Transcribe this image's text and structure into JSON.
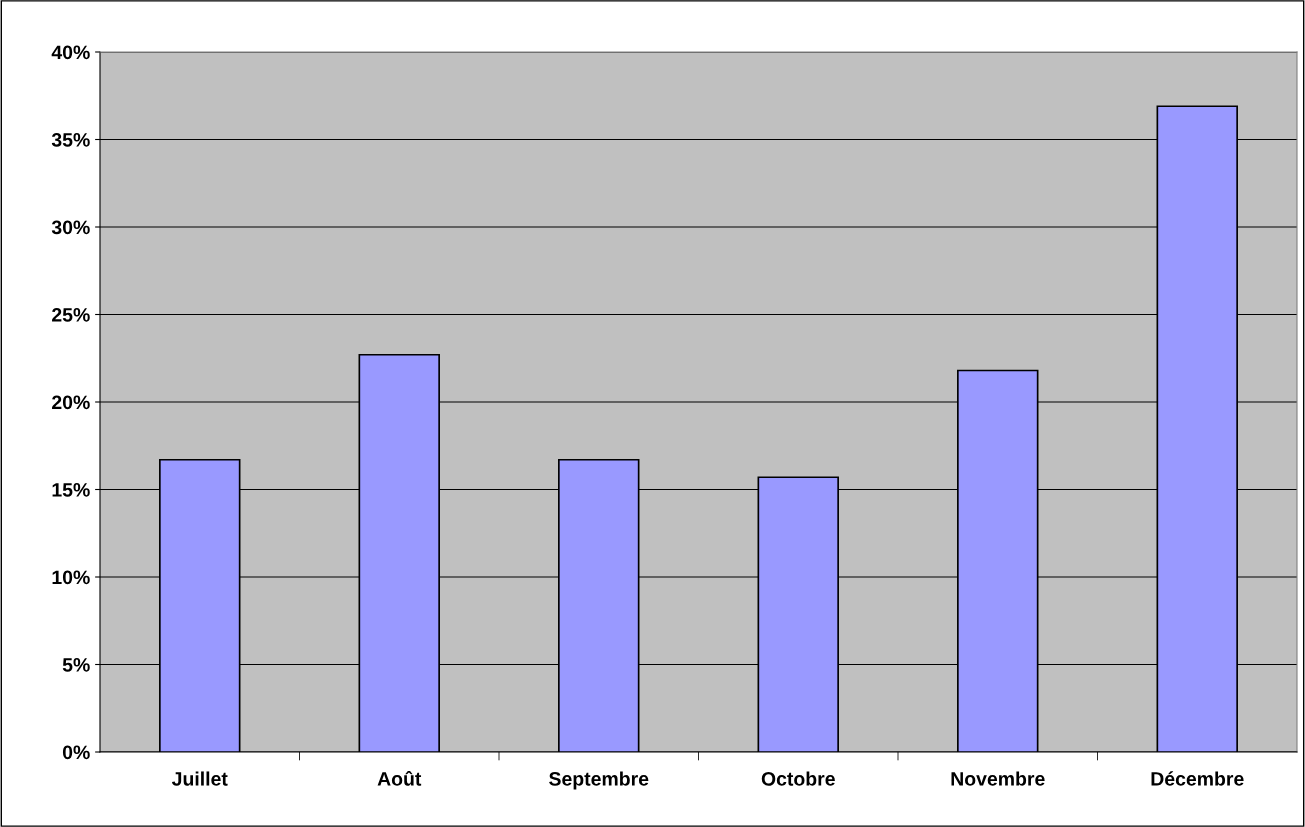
{
  "chart_data": {
    "type": "bar",
    "categories": [
      "Juillet",
      "Août",
      "Septembre",
      "Octobre",
      "Novembre",
      "Décembre"
    ],
    "values": [
      16.7,
      22.7,
      16.7,
      15.7,
      21.8,
      36.9
    ],
    "color": "#9999ff",
    "ylim": [
      0,
      40
    ],
    "yticks": [
      {
        "value": 0,
        "label": "0%"
      },
      {
        "value": 5,
        "label": "5%"
      },
      {
        "value": 10,
        "label": "10%"
      },
      {
        "value": 15,
        "label": "15%"
      },
      {
        "value": 20,
        "label": "20%"
      },
      {
        "value": 25,
        "label": "25%"
      },
      {
        "value": 30,
        "label": "30%"
      },
      {
        "value": 35,
        "label": "35%"
      },
      {
        "value": 40,
        "label": "40%"
      }
    ],
    "grid": "y"
  }
}
